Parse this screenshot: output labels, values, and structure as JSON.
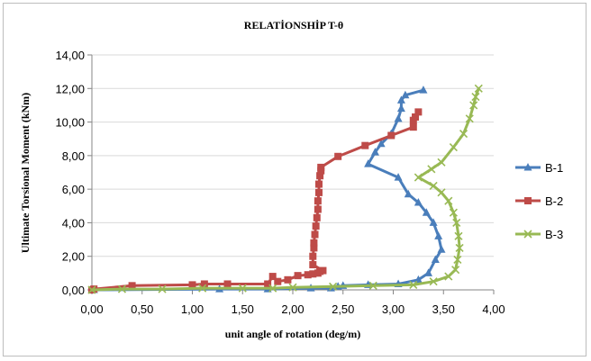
{
  "chart_data": {
    "type": "scatter",
    "title": "RELATİONSHİP  T-θ",
    "xlabel": "unit angle of rotation (deg/m)",
    "ylabel": "Ultimate Torsional Moment (kNm)",
    "xlim": [
      0,
      4
    ],
    "ylim": [
      0,
      14
    ],
    "x_ticks": [
      "0,00",
      "0,50",
      "1,00",
      "1,50",
      "2,00",
      "2,50",
      "3,00",
      "3,50",
      "4,00"
    ],
    "y_ticks": [
      "0,00",
      "2,00",
      "4,00",
      "6,00",
      "8,00",
      "10,00",
      "12,00",
      "14,00"
    ],
    "grid": true,
    "legend_position": "right",
    "series": [
      {
        "name": "B-1",
        "color": "#4a7ebb",
        "marker": "triangle",
        "points": [
          [
            0,
            0
          ],
          [
            0.02,
            0
          ],
          [
            1.27,
            0.05
          ],
          [
            1.75,
            0.05
          ],
          [
            2.18,
            0.1
          ],
          [
            2.38,
            0.1
          ],
          [
            2.45,
            0.2
          ],
          [
            2.5,
            0.25
          ],
          [
            2.75,
            0.3
          ],
          [
            3.05,
            0.35
          ],
          [
            3.25,
            0.6
          ],
          [
            3.35,
            1.0
          ],
          [
            3.42,
            1.8
          ],
          [
            3.48,
            2.4
          ],
          [
            3.45,
            3.2
          ],
          [
            3.4,
            4.0
          ],
          [
            3.33,
            4.6
          ],
          [
            3.25,
            5.2
          ],
          [
            3.15,
            5.7
          ],
          [
            3.05,
            6.7
          ],
          [
            2.75,
            7.5
          ],
          [
            2.82,
            8.2
          ],
          [
            2.88,
            8.7
          ],
          [
            2.98,
            9.3
          ],
          [
            3.05,
            10.2
          ],
          [
            3.08,
            10.8
          ],
          [
            3.08,
            11.3
          ],
          [
            3.12,
            11.6
          ],
          [
            3.3,
            11.9
          ]
        ]
      },
      {
        "name": "B-2",
        "color": "#be4b48",
        "marker": "square",
        "points": [
          [
            0,
            0
          ],
          [
            0.02,
            0.05
          ],
          [
            0.4,
            0.25
          ],
          [
            1.0,
            0.3
          ],
          [
            1.12,
            0.35
          ],
          [
            1.35,
            0.35
          ],
          [
            1.75,
            0.35
          ],
          [
            1.8,
            0.8
          ],
          [
            1.85,
            0.5
          ],
          [
            1.95,
            0.6
          ],
          [
            2.05,
            0.85
          ],
          [
            2.15,
            0.9
          ],
          [
            2.2,
            0.95
          ],
          [
            2.25,
            1.0
          ],
          [
            2.27,
            1.1
          ],
          [
            2.3,
            1.15
          ],
          [
            2.2,
            1.5
          ],
          [
            2.2,
            2.0
          ],
          [
            2.21,
            2.5
          ],
          [
            2.21,
            2.8
          ],
          [
            2.22,
            3.3
          ],
          [
            2.23,
            3.8
          ],
          [
            2.24,
            4.3
          ],
          [
            2.25,
            4.8
          ],
          [
            2.25,
            5.3
          ],
          [
            2.26,
            5.8
          ],
          [
            2.26,
            6.3
          ],
          [
            2.27,
            6.8
          ],
          [
            2.28,
            7.1
          ],
          [
            2.28,
            7.3
          ],
          [
            2.45,
            7.95
          ],
          [
            2.72,
            8.6
          ],
          [
            2.98,
            9.2
          ],
          [
            3.2,
            9.7
          ],
          [
            3.2,
            10.1
          ],
          [
            3.22,
            10.3
          ],
          [
            3.25,
            10.6
          ]
        ]
      },
      {
        "name": "B-3",
        "color": "#98b954",
        "marker": "cross",
        "points": [
          [
            0,
            0
          ],
          [
            0.3,
            0.05
          ],
          [
            0.7,
            0.05
          ],
          [
            1.1,
            0.1
          ],
          [
            1.5,
            0.1
          ],
          [
            1.8,
            0.1
          ],
          [
            2.0,
            0.15
          ],
          [
            2.4,
            0.2
          ],
          [
            2.8,
            0.25
          ],
          [
            3.2,
            0.3
          ],
          [
            3.4,
            0.5
          ],
          [
            3.55,
            0.8
          ],
          [
            3.62,
            1.2
          ],
          [
            3.64,
            1.8
          ],
          [
            3.66,
            2.5
          ],
          [
            3.65,
            3.2
          ],
          [
            3.63,
            4.0
          ],
          [
            3.6,
            4.6
          ],
          [
            3.55,
            5.3
          ],
          [
            3.48,
            5.8
          ],
          [
            3.4,
            6.2
          ],
          [
            3.25,
            6.7
          ],
          [
            3.38,
            7.2
          ],
          [
            3.48,
            7.6
          ],
          [
            3.6,
            8.5
          ],
          [
            3.7,
            9.3
          ],
          [
            3.76,
            10.2
          ],
          [
            3.8,
            11.0
          ],
          [
            3.82,
            11.5
          ],
          [
            3.85,
            12.0
          ]
        ]
      }
    ]
  }
}
